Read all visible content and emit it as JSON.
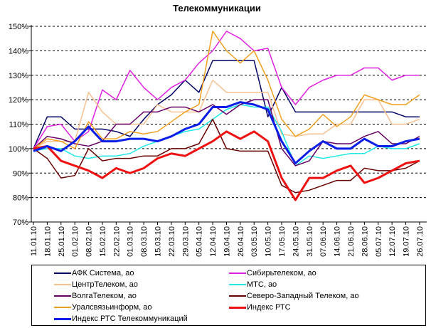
{
  "chart_data": {
    "type": "line",
    "title": "Телекоммуникации",
    "xlabel": "",
    "ylabel": "",
    "ylim": [
      70,
      150
    ],
    "yticks": [
      "70%",
      "80%",
      "90%",
      "100%",
      "110%",
      "120%",
      "130%",
      "140%",
      "150%"
    ],
    "grid": "horizontal dashed",
    "legend_position": "bottom",
    "categories": [
      "11.01.10",
      "18.01.10",
      "25.01.10",
      "01.02.10",
      "08.02.10",
      "15.02.10",
      "22.02.10",
      "01.03.10",
      "08.03.10",
      "15.03.10",
      "22.03.10",
      "29.03.10",
      "05.04.10",
      "12.04.10",
      "19.04.10",
      "26.04.10",
      "03.05.10",
      "10.05.10",
      "17.05.10",
      "24.05.10",
      "31.05.10",
      "07.06.10",
      "14.06.10",
      "21.06.10",
      "28.06.10",
      "05.07.10",
      "12.07.10",
      "19.07.10",
      "26.07.10"
    ],
    "series": [
      {
        "name": "АФК Система, ао",
        "color": "#000066",
        "width": 1.5,
        "values": [
          100,
          113,
          113,
          108,
          108,
          108,
          107,
          105,
          112,
          118,
          122,
          128,
          123,
          136,
          136,
          136,
          136,
          113,
          125,
          115,
          115,
          115,
          115,
          115,
          115,
          115,
          115,
          113,
          113
        ]
      },
      {
        "name": "Сибирьтелеком, ао",
        "color": "#e020e0",
        "width": 1.5,
        "values": [
          100,
          109,
          110,
          103,
          107,
          124,
          120,
          132,
          125,
          120,
          125,
          128,
          135,
          140,
          148,
          145,
          140,
          141,
          125,
          118,
          125,
          128,
          130,
          130,
          133,
          133,
          128,
          130,
          130
        ]
      },
      {
        "name": "ЦентрТелеком, ао",
        "color": "#f8c090",
        "width": 1.5,
        "values": [
          100,
          103,
          103,
          103,
          123,
          115,
          110,
          110,
          110,
          118,
          115,
          115,
          115,
          128,
          123,
          123,
          123,
          123,
          106,
          105,
          106,
          106,
          110,
          110,
          120,
          120,
          110,
          110,
          112
        ]
      },
      {
        "name": "МТС, ао",
        "color": "#20e8e8",
        "width": 1.5,
        "values": [
          99,
          100,
          100,
          97,
          96,
          97,
          97,
          98,
          101,
          103,
          105,
          107,
          108,
          112,
          116,
          118,
          117,
          117,
          107,
          93,
          97,
          96,
          97,
          98,
          98,
          101,
          100,
          100,
          102
        ]
      },
      {
        "name": "ВолгаТелеком, ао",
        "color": "#660066",
        "width": 1.5,
        "values": [
          100,
          105,
          104,
          102,
          101,
          103,
          110,
          110,
          115,
          115,
          117,
          117,
          115,
          118,
          114,
          118,
          120,
          120,
          100,
          93,
          95,
          103,
          102,
          102,
          105,
          107,
          102,
          102,
          105
        ]
      },
      {
        "name": "Северо-Западный Телеком, ао",
        "color": "#660000",
        "width": 1.5,
        "values": [
          100,
          96,
          88,
          89,
          100,
          95,
          96,
          96,
          97,
          97,
          100,
          100,
          102,
          112,
          100,
          99,
          99,
          99,
          85,
          82,
          83,
          85,
          87,
          87,
          92,
          91,
          91,
          92,
          95
        ]
      },
      {
        "name": "Уралсвязьинформ, ао",
        "color": "#f0a020",
        "width": 1.5,
        "values": [
          100,
          104,
          103,
          100,
          111,
          104,
          104,
          107,
          106,
          107,
          111,
          115,
          118,
          148,
          140,
          135,
          140,
          128,
          112,
          105,
          108,
          114,
          109,
          113,
          122,
          120,
          118,
          118,
          122
        ]
      },
      {
        "name": "Индекс РТС",
        "color": "#ee1111",
        "width": 3,
        "values": [
          100,
          101,
          95,
          93,
          91,
          88,
          92,
          90,
          92,
          96,
          98,
          97,
          100,
          103,
          107,
          104,
          107,
          103,
          88,
          79,
          88,
          88,
          91,
          93,
          86,
          88,
          91,
          94,
          95
        ]
      },
      {
        "name": "Индекс РТС Телекоммуникаций",
        "color": "#0a1ee8",
        "width": 3,
        "values": [
          99,
          101,
          99,
          103,
          109,
          103,
          103,
          104,
          104,
          103,
          105,
          108,
          110,
          117,
          117,
          119,
          118,
          116,
          103,
          94,
          99,
          103,
          100,
          100,
          104,
          101,
          101,
          103,
          104
        ]
      }
    ]
  }
}
